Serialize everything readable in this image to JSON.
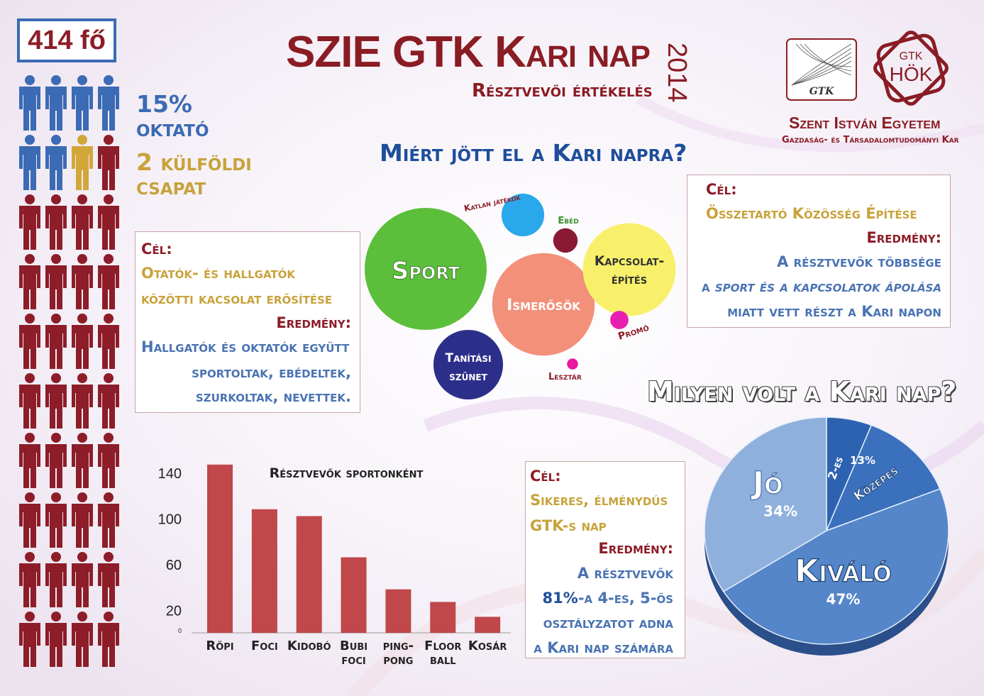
{
  "header": {
    "count": "414 fő",
    "title": "SZIE GTK Kari nap",
    "year": "2014",
    "subtitle": "Résztvevői értékelés",
    "teacher_pct": "15%",
    "teacher_label": "oktató",
    "foreign_count": "2 külföldi",
    "foreign_label": "csapat"
  },
  "people": {
    "rows": 10,
    "per_row": 4,
    "colors": {
      "teacher": "#3b6bb4",
      "foreign": "#d2a73a",
      "student": "#8d1d28"
    }
  },
  "logos": {
    "gtk": "GTK",
    "hok_top": "GTK",
    "hok_bottom": "HÖK",
    "uni": "Szent István Egyetem",
    "faculty": "Gazdaság- és Társadalomtudományi Kar"
  },
  "left_panel": {
    "goal_label": "Cél:",
    "goal_1": "Otatók- és hallgatók",
    "goal_2": "közötti  kacsolat erősítése",
    "result_label": "Eredmény:",
    "result_1": "Hallgatók és oktatók együtt",
    "result_2": "sportoltak, ebédeltek,",
    "result_3": "szurkoltak, nevettek."
  },
  "right_panel": {
    "goal_label": "Cél:",
    "goal_1": "Összetartó Közösség Építése",
    "result_label": "Eredmény:",
    "result_1": "A résztvevők többsége",
    "result_2a": "a ",
    "result_2b": "sport és a kapcsolatok ápolása",
    "result_3": "miatt vett részt a Kari napon"
  },
  "bottom_panel": {
    "goal_label": "Cél:",
    "goal_1": "Sikeres, élménydús",
    "goal_2": "GTK-s nap",
    "result_label": "Eredmény:",
    "result_1": "A résztvevők",
    "result_2a": "81%",
    "result_2b": "-a 4-es, 5-ös",
    "result_3": "osztályzatot adna",
    "result_4": "a Kari nap számára"
  },
  "questions": {
    "why": "Miért jött el a Kari napra?",
    "how": "Milyen volt a Kari nap?"
  },
  "chart_data": [
    {
      "type": "bubble",
      "items": [
        {
          "label": "Sport",
          "size": 1.0,
          "color": "#5cbf3c"
        },
        {
          "label": "Ismerősök",
          "size": 0.84,
          "color": "#f2907a"
        },
        {
          "label": "Kapcsolat-építés",
          "size": 0.76,
          "color": "#f8f06a"
        },
        {
          "label": "Tanítási szünet",
          "size": 0.57,
          "color": "#2c2f8a"
        },
        {
          "label": "Katlan játékok",
          "size": 0.35,
          "color": "#2aa8ec"
        },
        {
          "label": "Ebéd",
          "size": 0.2,
          "color": "#8a1a33"
        },
        {
          "label": "Promó",
          "size": 0.15,
          "color": "#e81fb0"
        },
        {
          "label": "Lesztár",
          "size": 0.09,
          "color": "#e8199e"
        }
      ]
    },
    {
      "type": "bar",
      "title": "Résztvevők sportonként",
      "categories": [
        "Röpi",
        "Foci",
        "Kidobó",
        "Bubi foci",
        "ping-pong",
        "Floor ball",
        "Kosár"
      ],
      "category_lines": [
        [
          "Röpi"
        ],
        [
          "Foci"
        ],
        [
          "Kidobó"
        ],
        [
          "Bubi",
          "foci"
        ],
        [
          "ping-",
          "pong"
        ],
        [
          "Floor",
          "ball"
        ],
        [
          "Kosár"
        ]
      ],
      "values": [
        147,
        108,
        102,
        66,
        38,
        27,
        14
      ],
      "yticks": [
        "140",
        "100",
        "60",
        "20",
        "0"
      ],
      "ytick_values": [
        140,
        100,
        60,
        20,
        0
      ],
      "ylim": [
        0,
        150
      ],
      "color": "#c0474a"
    },
    {
      "type": "pie",
      "slices": [
        {
          "label": "2-es",
          "value": 6,
          "pct_label": "",
          "color": "#2d62b0"
        },
        {
          "label": "Közepes",
          "value": 13,
          "pct_label": "13%",
          "color": "#3a70bc"
        },
        {
          "label": "Kiváló",
          "value": 47,
          "pct_label": "47%",
          "color": "#5486c9"
        },
        {
          "label": "Jó",
          "value": 34,
          "pct_label": "34%",
          "color": "#8fb0dd"
        }
      ]
    }
  ]
}
